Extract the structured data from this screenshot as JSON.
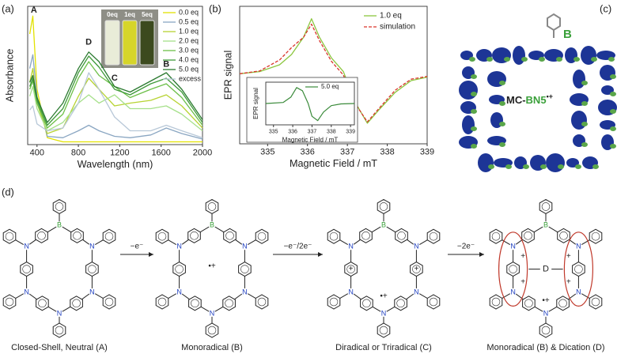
{
  "panel_labels": [
    "(a)",
    "(b)",
    "(c)",
    "(d)"
  ],
  "chart_data": [
    {
      "type": "line",
      "xlabel": "Wavelength (nm)",
      "ylabel": "Absorbance",
      "x": [
        330,
        360,
        400,
        500,
        650,
        800,
        900,
        1000,
        1150,
        1300,
        1500,
        1650,
        1800,
        2000
      ],
      "xlim": [
        310,
        2000
      ],
      "xticks": [
        400,
        800,
        1200,
        1600,
        2000
      ],
      "ylim": [
        0,
        1
      ],
      "legend": "upper right",
      "series": [
        {
          "name": "0.0 eq",
          "color": "#e2e200",
          "values": [
            0.8,
            0.93,
            0.4,
            0.05,
            0.02,
            0.02,
            0.02,
            0.02,
            0.02,
            0.02,
            0.02,
            0.02,
            0.02,
            0.02
          ]
        },
        {
          "name": "0.5 eq",
          "color": "#8aa6c2",
          "values": [
            0.55,
            0.65,
            0.35,
            0.06,
            0.05,
            0.1,
            0.14,
            0.1,
            0.06,
            0.05,
            0.07,
            0.12,
            0.08,
            0.04
          ]
        },
        {
          "name": "1.0 eq",
          "color": "#b7d332",
          "values": [
            0.45,
            0.55,
            0.3,
            0.08,
            0.12,
            0.35,
            0.48,
            0.4,
            0.28,
            0.3,
            0.32,
            0.36,
            0.28,
            0.12
          ]
        },
        {
          "name": "2.0 eq",
          "color": "#a6e08a",
          "values": [
            0.35,
            0.42,
            0.26,
            0.1,
            0.16,
            0.3,
            0.36,
            0.3,
            0.36,
            0.26,
            0.26,
            0.28,
            0.22,
            0.1
          ]
        },
        {
          "name": "3.0 eq",
          "color": "#6cbf48",
          "values": [
            0.4,
            0.46,
            0.3,
            0.12,
            0.22,
            0.48,
            0.6,
            0.5,
            0.42,
            0.34,
            0.4,
            0.44,
            0.34,
            0.14
          ]
        },
        {
          "name": "4.0 eq",
          "color": "#3f9a3a",
          "values": [
            0.42,
            0.48,
            0.32,
            0.14,
            0.26,
            0.52,
            0.64,
            0.56,
            0.4,
            0.36,
            0.44,
            0.48,
            0.38,
            0.16
          ]
        },
        {
          "name": "5.0 eq",
          "color": "#2b7a30",
          "values": [
            0.45,
            0.5,
            0.34,
            0.16,
            0.3,
            0.55,
            0.67,
            0.6,
            0.42,
            0.38,
            0.46,
            0.52,
            0.4,
            0.18
          ]
        },
        {
          "name": "excess",
          "color": "#b8c8d8",
          "values": [
            0.25,
            0.28,
            0.15,
            0.1,
            0.12,
            0.3,
            0.52,
            0.4,
            0.2,
            0.1,
            0.1,
            0.14,
            0.1,
            0.05
          ]
        }
      ],
      "annotations": [
        {
          "text": "A",
          "x": 370,
          "y": 0.97
        },
        {
          "text": "D",
          "x": 900,
          "y": 0.74
        },
        {
          "text": "C",
          "x": 1150,
          "y": 0.48
        },
        {
          "text": "B",
          "x": 1650,
          "y": 0.58
        }
      ],
      "inset_labels": [
        "0eq",
        "1eq",
        "5eq"
      ]
    },
    {
      "type": "line",
      "xlabel": "Magnetic Field / mT",
      "ylabel": "EPR signal",
      "x": [
        334.3,
        334.8,
        335.3,
        335.6,
        335.9,
        336.1,
        336.3,
        336.6,
        336.9,
        337.2,
        337.5,
        337.8,
        338.2,
        338.6,
        339
      ],
      "xlim": [
        334.3,
        339
      ],
      "xticks": [
        335,
        336,
        337,
        338,
        339
      ],
      "ylim": [
        -1,
        1
      ],
      "legend": "upper right",
      "series": [
        {
          "name": "1.0 eq",
          "color": "#8cc63f",
          "values": [
            0.02,
            0.05,
            0.15,
            0.3,
            0.55,
            0.82,
            0.55,
            0.25,
            0.05,
            -0.4,
            -0.7,
            -0.5,
            -0.25,
            -0.08,
            -0.03
          ]
        },
        {
          "name": "simulation",
          "color": "#d9342b",
          "dash": true,
          "values": [
            0.02,
            0.06,
            0.22,
            0.4,
            0.55,
            0.74,
            0.5,
            0.2,
            0.0,
            -0.42,
            -0.68,
            -0.48,
            -0.22,
            -0.06,
            -0.02
          ]
        }
      ]
    },
    {
      "type": "line",
      "xlabel": "Magnetic Field / mT",
      "ylabel": "EPR signal",
      "x": [
        334.6,
        335.5,
        335.9,
        336.2,
        336.5,
        336.8,
        337.0,
        337.3,
        337.6,
        338.0,
        338.5,
        339.2
      ],
      "xlim": [
        334.6,
        339.2
      ],
      "xticks": [
        335,
        336,
        337,
        338,
        339
      ],
      "ylim": [
        -1,
        1
      ],
      "legend": "upper right",
      "series": [
        {
          "name": "5.0 eq",
          "color": "#3a8a3a",
          "values": [
            0.0,
            0.05,
            0.3,
            0.75,
            0.6,
            0.0,
            -0.6,
            -0.8,
            -0.4,
            -0.1,
            -0.02,
            0.0
          ]
        }
      ]
    }
  ],
  "molecule": {
    "atom": "B",
    "label_prefix": "MC-",
    "label_core": "BN5",
    "label_charge": "•+"
  },
  "scheme": {
    "atoms": {
      "B": "B",
      "N": "N"
    },
    "cation": "+",
    "radical_cation": "•+",
    "dication": "D",
    "steps": [
      "−e⁻",
      "−e⁻/2e⁻",
      "−2e⁻"
    ],
    "states": [
      "Closed-Shell, Neutral (A)",
      "Monoradical (B)",
      "Diradical or Triradical (C)",
      "Monoradical (B) & Dication (D)"
    ]
  }
}
